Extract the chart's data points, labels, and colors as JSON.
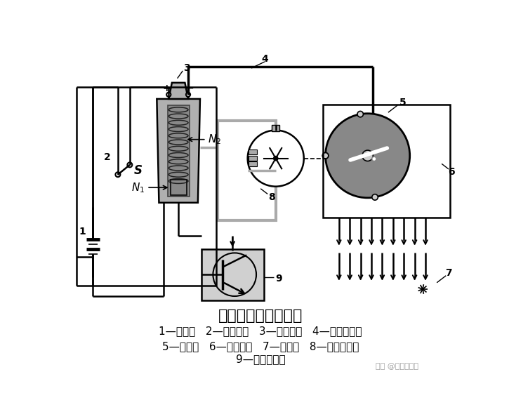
{
  "title": "点火系的工作原理图",
  "legend_line1": "1—蓄电池   2—点火开关   3—点火线圈   4—中央高压线",
  "legend_line2": "5—配电器   6—分高压线   7—火花塞   8—信号发生器",
  "legend_line3": "9—点火控制器",
  "watermark": "知乎 @汽车爱知家",
  "bg_color": "#ffffff",
  "lc": "#000000",
  "gray1": "#aaaaaa",
  "gray2": "#888888",
  "gray3": "#cccccc",
  "coil_outer": "#b0b0b0",
  "controller_fill": "#d0d0d0",
  "dist_fill": "#888888"
}
